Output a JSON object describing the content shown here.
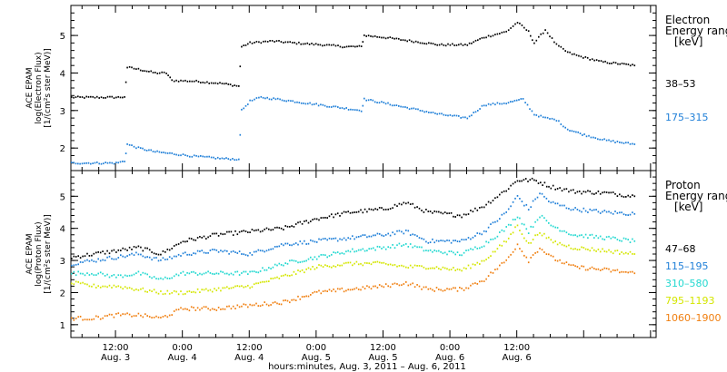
{
  "chart_data": [
    {
      "type": "scatter",
      "panel": "electron",
      "ylabel_lines": [
        "ACE EPAM",
        "log(Electron Flux)",
        "[1/(cm²s ster MeV)]"
      ],
      "ylim": [
        1.4,
        5.8
      ],
      "yticks": [
        2,
        3,
        4,
        5
      ],
      "xlim_hours": [
        -8,
        97
      ],
      "grid": false,
      "legend": {
        "position": "right",
        "title_lines": [
          "Electron",
          "Energy ranges",
          "[keV]"
        ]
      },
      "series": [
        {
          "name": "38–53",
          "color": "#000000",
          "points": [
            [
              -8,
              3.35
            ],
            [
              0,
              3.35
            ],
            [
              1.5,
              3.36
            ],
            [
              2,
              4.15
            ],
            [
              4,
              4.1
            ],
            [
              7,
              4.0
            ],
            [
              9,
              4.0
            ],
            [
              10,
              3.8
            ],
            [
              14,
              3.78
            ],
            [
              19,
              3.72
            ],
            [
              22,
              3.65
            ],
            [
              22.5,
              4.7
            ],
            [
              24,
              4.8
            ],
            [
              28,
              4.85
            ],
            [
              32,
              4.8
            ],
            [
              37,
              4.75
            ],
            [
              41,
              4.7
            ],
            [
              44,
              4.7
            ],
            [
              44.5,
              5.0
            ],
            [
              48,
              4.95
            ],
            [
              53,
              4.85
            ],
            [
              58,
              4.75
            ],
            [
              63,
              4.75
            ],
            [
              66,
              4.95
            ],
            [
              70,
              5.1
            ],
            [
              72,
              5.35
            ],
            [
              74,
              5.1
            ],
            [
              75,
              4.8
            ],
            [
              77,
              5.15
            ],
            [
              79,
              4.75
            ],
            [
              81,
              4.55
            ],
            [
              83,
              4.45
            ],
            [
              87,
              4.3
            ],
            [
              90,
              4.25
            ],
            [
              93,
              4.2
            ]
          ]
        },
        {
          "name": "175–315",
          "color": "#1f7fd8",
          "points": [
            [
              -8,
              1.6
            ],
            [
              0,
              1.6
            ],
            [
              1.5,
              1.65
            ],
            [
              2,
              2.1
            ],
            [
              4,
              2.0
            ],
            [
              7,
              1.9
            ],
            [
              10,
              1.85
            ],
            [
              14,
              1.78
            ],
            [
              19,
              1.72
            ],
            [
              22,
              1.7
            ],
            [
              22.5,
              3.0
            ],
            [
              24,
              3.25
            ],
            [
              26,
              3.35
            ],
            [
              29,
              3.3
            ],
            [
              34,
              3.2
            ],
            [
              39,
              3.1
            ],
            [
              44,
              3.0
            ],
            [
              44.5,
              3.3
            ],
            [
              48,
              3.2
            ],
            [
              53,
              3.05
            ],
            [
              58,
              2.9
            ],
            [
              63,
              2.8
            ],
            [
              66,
              3.15
            ],
            [
              70,
              3.2
            ],
            [
              73,
              3.3
            ],
            [
              75,
              2.9
            ],
            [
              77,
              2.8
            ],
            [
              79,
              2.75
            ],
            [
              81,
              2.5
            ],
            [
              84,
              2.35
            ],
            [
              88,
              2.2
            ],
            [
              93,
              2.1
            ]
          ]
        }
      ]
    },
    {
      "type": "scatter",
      "panel": "proton",
      "ylabel_lines": [
        "ACE EPAM",
        "log(Proton Flux)",
        "[1/(cm²s ster MeV)]"
      ],
      "ylim": [
        0.6,
        5.8
      ],
      "yticks": [
        1,
        2,
        3,
        4,
        5
      ],
      "xlim_hours": [
        -8,
        97
      ],
      "grid": false,
      "legend": {
        "position": "right",
        "title_lines": [
          "Proton",
          "Energy ranges",
          "[keV]"
        ]
      },
      "series": [
        {
          "name": "47–68",
          "color": "#000000",
          "points": [
            [
              -8,
              3.1
            ],
            [
              -4,
              3.2
            ],
            [
              0,
              3.3
            ],
            [
              4,
              3.4
            ],
            [
              8,
              3.2
            ],
            [
              12,
              3.6
            ],
            [
              18,
              3.8
            ],
            [
              24,
              3.9
            ],
            [
              30,
              4.0
            ],
            [
              36,
              4.3
            ],
            [
              42,
              4.5
            ],
            [
              48,
              4.6
            ],
            [
              52,
              4.8
            ],
            [
              56,
              4.5
            ],
            [
              62,
              4.4
            ],
            [
              66,
              4.7
            ],
            [
              70,
              5.2
            ],
            [
              72,
              5.5
            ],
            [
              75,
              5.5
            ],
            [
              78,
              5.3
            ],
            [
              82,
              5.15
            ],
            [
              88,
              5.1
            ],
            [
              93,
              5.0
            ]
          ]
        },
        {
          "name": "115–195",
          "color": "#1f7fd8",
          "points": [
            [
              -8,
              2.9
            ],
            [
              -4,
              3.0
            ],
            [
              0,
              3.1
            ],
            [
              4,
              3.2
            ],
            [
              8,
              3.0
            ],
            [
              12,
              3.2
            ],
            [
              18,
              3.3
            ],
            [
              24,
              3.2
            ],
            [
              30,
              3.5
            ],
            [
              36,
              3.6
            ],
            [
              42,
              3.7
            ],
            [
              48,
              3.8
            ],
            [
              52,
              3.9
            ],
            [
              56,
              3.6
            ],
            [
              62,
              3.6
            ],
            [
              66,
              3.9
            ],
            [
              70,
              4.5
            ],
            [
              72,
              5.0
            ],
            [
              74,
              4.6
            ],
            [
              76,
              5.1
            ],
            [
              78,
              4.8
            ],
            [
              82,
              4.6
            ],
            [
              88,
              4.5
            ],
            [
              93,
              4.45
            ]
          ]
        },
        {
          "name": "310–580",
          "color": "#22d8d0",
          "points": [
            [
              -8,
              2.6
            ],
            [
              -4,
              2.6
            ],
            [
              0,
              2.5
            ],
            [
              4,
              2.6
            ],
            [
              8,
              2.4
            ],
            [
              12,
              2.6
            ],
            [
              18,
              2.6
            ],
            [
              24,
              2.6
            ],
            [
              30,
              2.9
            ],
            [
              36,
              3.1
            ],
            [
              42,
              3.3
            ],
            [
              48,
              3.4
            ],
            [
              52,
              3.5
            ],
            [
              56,
              3.3
            ],
            [
              62,
              3.2
            ],
            [
              66,
              3.5
            ],
            [
              70,
              4.0
            ],
            [
              72,
              4.4
            ],
            [
              74,
              3.9
            ],
            [
              76,
              4.4
            ],
            [
              78,
              4.1
            ],
            [
              82,
              3.8
            ],
            [
              88,
              3.7
            ],
            [
              93,
              3.6
            ]
          ]
        },
        {
          "name": "795–1193",
          "color": "#d4e600",
          "points": [
            [
              -8,
              2.3
            ],
            [
              -4,
              2.2
            ],
            [
              0,
              2.2
            ],
            [
              4,
              2.1
            ],
            [
              8,
              2.0
            ],
            [
              12,
              2.0
            ],
            [
              18,
              2.1
            ],
            [
              24,
              2.2
            ],
            [
              30,
              2.5
            ],
            [
              36,
              2.8
            ],
            [
              42,
              2.9
            ],
            [
              48,
              2.9
            ],
            [
              52,
              2.8
            ],
            [
              56,
              2.8
            ],
            [
              62,
              2.7
            ],
            [
              66,
              3.0
            ],
            [
              70,
              3.6
            ],
            [
              72,
              4.1
            ],
            [
              74,
              3.5
            ],
            [
              76,
              3.9
            ],
            [
              78,
              3.6
            ],
            [
              82,
              3.4
            ],
            [
              88,
              3.3
            ],
            [
              93,
              3.2
            ]
          ]
        },
        {
          "name": "1060–1900",
          "color": "#f07f10",
          "points": [
            [
              -8,
              1.2
            ],
            [
              -4,
              1.2
            ],
            [
              0,
              1.3
            ],
            [
              4,
              1.3
            ],
            [
              8,
              1.2
            ],
            [
              12,
              1.5
            ],
            [
              18,
              1.5
            ],
            [
              24,
              1.6
            ],
            [
              30,
              1.7
            ],
            [
              36,
              2.0
            ],
            [
              42,
              2.1
            ],
            [
              48,
              2.2
            ],
            [
              52,
              2.3
            ],
            [
              56,
              2.1
            ],
            [
              62,
              2.1
            ],
            [
              66,
              2.4
            ],
            [
              70,
              3.0
            ],
            [
              72,
              3.5
            ],
            [
              74,
              3.0
            ],
            [
              76,
              3.4
            ],
            [
              78,
              3.1
            ],
            [
              82,
              2.8
            ],
            [
              88,
              2.7
            ],
            [
              93,
              2.6
            ]
          ]
        }
      ]
    }
  ],
  "x_axis": {
    "ticks": [
      {
        "hours": 0,
        "time": "12:00",
        "date": "Aug. 3"
      },
      {
        "hours": 12,
        "time": "0:00",
        "date": "Aug. 4"
      },
      {
        "hours": 24,
        "time": "12:00",
        "date": "Aug. 4"
      },
      {
        "hours": 36,
        "time": "0:00",
        "date": "Aug. 5"
      },
      {
        "hours": 48,
        "time": "12:00",
        "date": "Aug. 5"
      },
      {
        "hours": 60,
        "time": "0:00",
        "date": "Aug. 6"
      },
      {
        "hours": 72,
        "time": "12:00",
        "date": "Aug. 6"
      }
    ],
    "xlabel": "hours:minutes, Aug.  3, 2011 – Aug.  6, 2011"
  }
}
